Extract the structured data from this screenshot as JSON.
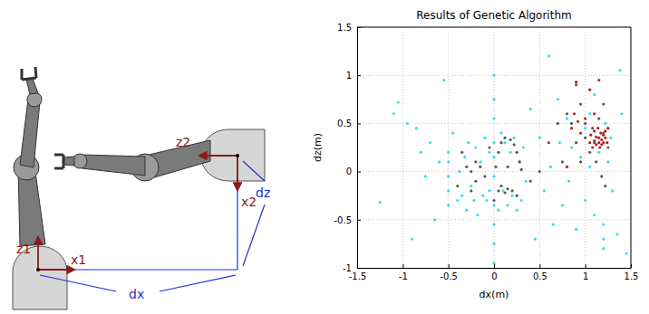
{
  "chart_data": {
    "type": "scatter",
    "title": "Results of Genetic Algorithm",
    "x_label": "dx(m)",
    "y_label": "dz(m)",
    "xlim": [
      -1.5,
      1.5
    ],
    "xticks": [
      -1.5,
      -1,
      -0.5,
      0,
      0.5,
      1,
      1.5
    ],
    "ylim": [
      -1,
      1.5
    ],
    "yticks": [
      -1,
      -0.5,
      0,
      0.5,
      1,
      1.5
    ],
    "grid": true,
    "series": [
      {
        "color": "#33e0e6",
        "marker": "point",
        "x": [
          -1.25,
          -1.1,
          -1.05,
          -0.95,
          -0.9,
          -0.85,
          -0.8,
          -0.75,
          -0.7,
          -0.65,
          -0.6,
          -0.55,
          -0.5,
          -0.5,
          -0.5,
          -0.5,
          -0.5,
          -0.45,
          -0.4,
          -0.38,
          -0.35,
          -0.32,
          -0.3,
          -0.28,
          -0.25,
          -0.22,
          -0.2,
          -0.18,
          -0.15,
          -0.12,
          -0.1,
          -0.08,
          -0.05,
          -0.05,
          0,
          0,
          0,
          0,
          0,
          0,
          0,
          0,
          0,
          0,
          0.05,
          0.08,
          0.1,
          0.12,
          0.15,
          0.18,
          0.2,
          0.22,
          0.25,
          0.28,
          0.3,
          0.32,
          0.35,
          0.4,
          0.45,
          0.5,
          0.55,
          0.6,
          0.62,
          0.65,
          0.7,
          0.72,
          0.75,
          0.8,
          0.82,
          0.85,
          0.9,
          0.95,
          1.0,
          1.0,
          1.05,
          1.05,
          1.1,
          1.1,
          1.15,
          1.2,
          1.2,
          1.2,
          1.22,
          1.25,
          1.28,
          1.3,
          1.35,
          1.38,
          1.4,
          1.45
        ],
        "values": [
          -0.32,
          0.6,
          0.72,
          0.5,
          -0.7,
          0.45,
          0.2,
          -0.05,
          0.3,
          -0.5,
          0.1,
          0.95,
          0.2,
          0.1,
          -0.05,
          -0.2,
          -0.35,
          0.4,
          -0.3,
          0.0,
          -0.25,
          0.15,
          -0.4,
          0.3,
          -0.15,
          -0.3,
          0.25,
          -0.45,
          0.1,
          -0.25,
          0.35,
          -0.3,
          0.2,
          -0.2,
          1.0,
          0.75,
          0.55,
          0.3,
          0.15,
          -0.05,
          -0.35,
          -0.55,
          -0.75,
          -0.95,
          -0.4,
          0.4,
          -0.2,
          0.3,
          -0.35,
          0.2,
          -0.25,
          0.35,
          -0.4,
          0.1,
          -0.3,
          0.25,
          -0.1,
          0.65,
          -0.7,
          0.35,
          -0.2,
          1.2,
          0.05,
          -0.55,
          0.75,
          0.3,
          -0.35,
          0.55,
          -0.1,
          0.25,
          -0.6,
          0.15,
          0.45,
          -0.3,
          0.6,
          0.05,
          0.8,
          -0.45,
          0.2,
          -0.55,
          -0.7,
          -0.8,
          0.5,
          0.1,
          0.35,
          -0.2,
          -0.65,
          1.05,
          0.6,
          -0.85
        ]
      },
      {
        "color": "#595959",
        "marker": "point",
        "x": [
          -0.3,
          -0.25,
          -0.2,
          -0.15,
          -0.1,
          -0.25,
          -0.2,
          0.02,
          0.05,
          0.08,
          0.12,
          0.18,
          0.22,
          0.25,
          0.28,
          0.3,
          0.05,
          0.08,
          0.12,
          0.15,
          0.2,
          0.25,
          0.0,
          -0.05,
          -0.35,
          0.15,
          0.4,
          0.6,
          0.75,
          0.8,
          0.85,
          0.9,
          0.95,
          1.0,
          1.05,
          1.08,
          1.1,
          1.12,
          1.15,
          1.2,
          1.22,
          1.18,
          1.25,
          1.0,
          0.95,
          0.7,
          0.5,
          -0.4,
          1.2,
          0.9
        ],
        "values": [
          0.05,
          0.0,
          0.1,
          0.05,
          -0.05,
          -0.2,
          -0.1,
          0.05,
          0.2,
          0.3,
          0.35,
          0.33,
          0.28,
          0.2,
          0.1,
          0.02,
          -0.2,
          -0.15,
          -0.22,
          -0.18,
          -0.2,
          -0.25,
          -0.3,
          0.25,
          0.2,
          0.05,
          -0.1,
          0.3,
          0.1,
          0.6,
          0.5,
          0.9,
          0.7,
          0.35,
          0.2,
          0.45,
          0.3,
          0.1,
          0.55,
          0.4,
          -0.15,
          -0.05,
          0.25,
          0.5,
          0.1,
          0.5,
          0.0,
          -0.15,
          0.7,
          0.3
        ]
      },
      {
        "color": "#b22222",
        "marker": "point",
        "x": [
          0.85,
          0.88,
          0.9,
          0.92,
          0.95,
          0.8,
          1.05,
          1.06,
          1.08,
          1.1,
          1.1,
          1.12,
          1.12,
          1.14,
          1.15,
          1.15,
          1.16,
          1.17,
          1.18,
          1.18,
          1.2,
          1.2,
          1.22,
          1.22,
          1.24,
          1.15,
          1.1,
          1.0,
          1.25,
          1.05
        ],
        "values": [
          0.45,
          0.6,
          0.93,
          0.52,
          0.4,
          0.05,
          0.3,
          0.38,
          0.25,
          0.42,
          0.32,
          0.28,
          0.36,
          0.45,
          0.3,
          0.35,
          0.25,
          0.4,
          0.33,
          0.28,
          0.38,
          0.3,
          0.35,
          0.42,
          0.3,
          0.95,
          0.6,
          0.55,
          0.45,
          0.85
        ]
      }
    ]
  },
  "diagram": {
    "labels": [
      "z1",
      "x1",
      "z2",
      "x2",
      "dx",
      "dz"
    ]
  }
}
